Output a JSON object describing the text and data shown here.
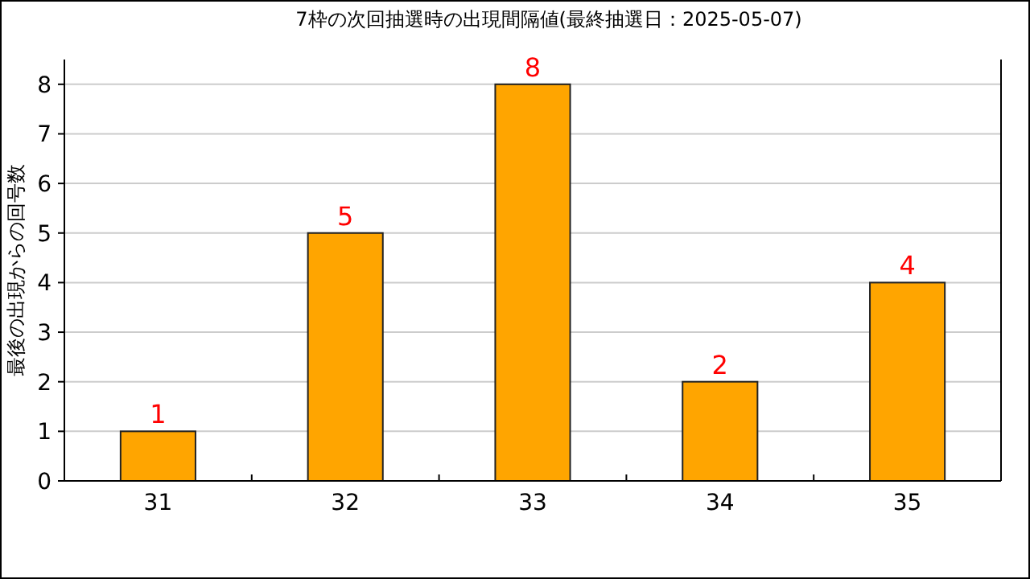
{
  "chart_data": {
    "type": "bar",
    "title": "7枠の次回抽選時の出現間隔値(最終抽選日：2025-05-07)",
    "ylabel": "最後の出現からの回号数",
    "categories": [
      "31",
      "32",
      "33",
      "34",
      "35"
    ],
    "values": [
      1,
      5,
      8,
      2,
      4
    ],
    "color": "#ffa500",
    "ylim": [
      0,
      8.5
    ],
    "yticks": [
      0,
      1,
      2,
      3,
      4,
      5,
      6,
      7,
      8
    ],
    "grid": "y",
    "data_labels": true
  }
}
